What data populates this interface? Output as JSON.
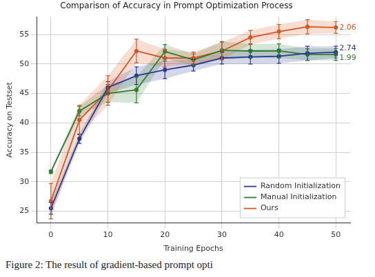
{
  "chart_data": {
    "type": "line",
    "title": "Comparison of Accuracy in Prompt Optimization Process",
    "x_label": "Training Epochs",
    "y_label": "Accuracy on Testset",
    "caption": "Figure 2: The result of gradient-based prompt opti",
    "x": [
      0,
      5,
      10,
      15,
      20,
      25,
      30,
      35,
      40,
      45,
      50
    ],
    "series": [
      {
        "name": "Random Initialization",
        "color": "#2a3990",
        "marker": "o",
        "values": [
          25.5,
          37.3,
          46.0,
          48.0,
          49.0,
          49.8,
          51.0,
          51.2,
          51.3,
          51.8,
          52.0
        ],
        "errors": [
          1.0,
          0.8,
          1.0,
          1.5,
          1.5,
          1.0,
          1.0,
          1.2,
          1.2,
          1.2,
          1.0
        ]
      },
      {
        "name": "Manual Initialization",
        "color": "#2e7d32",
        "marker": "o",
        "values": [
          31.7,
          42.0,
          45.0,
          45.6,
          52.1,
          50.7,
          52.3,
          52.2,
          52.2,
          51.6,
          51.6
        ],
        "errors": [
          0.3,
          0.8,
          1.5,
          2.2,
          1.2,
          1.0,
          1.5,
          1.2,
          1.2,
          1.0,
          1.0
        ]
      },
      {
        "name": "Ours",
        "color": "#d9541e",
        "marker": "o",
        "values": [
          26.7,
          40.5,
          45.5,
          52.2,
          51.0,
          51.0,
          52.2,
          54.5,
          55.5,
          56.3,
          56.2
        ],
        "errors": [
          3.0,
          2.5,
          2.5,
          2.0,
          1.5,
          1.0,
          1.5,
          1.2,
          1.2,
          1.2,
          1.0
        ]
      }
    ],
    "annotations": [
      {
        "text": "2.06",
        "x": 50,
        "y": 56.2,
        "color": "#d9541e"
      },
      {
        "text": "2.74",
        "x": 50,
        "y": 52.6,
        "color": "#2a3990"
      },
      {
        "text": "1.99",
        "x": 50,
        "y": 51.0,
        "color": "#2e7d32"
      }
    ],
    "xlim": [
      -2.5,
      52.5
    ],
    "xticks": [
      0,
      10,
      20,
      30,
      40,
      50
    ],
    "ylim": [
      23,
      58
    ],
    "yticks": [
      25,
      30,
      35,
      40,
      45,
      50,
      55
    ],
    "grid": true,
    "legend": "lower right"
  }
}
